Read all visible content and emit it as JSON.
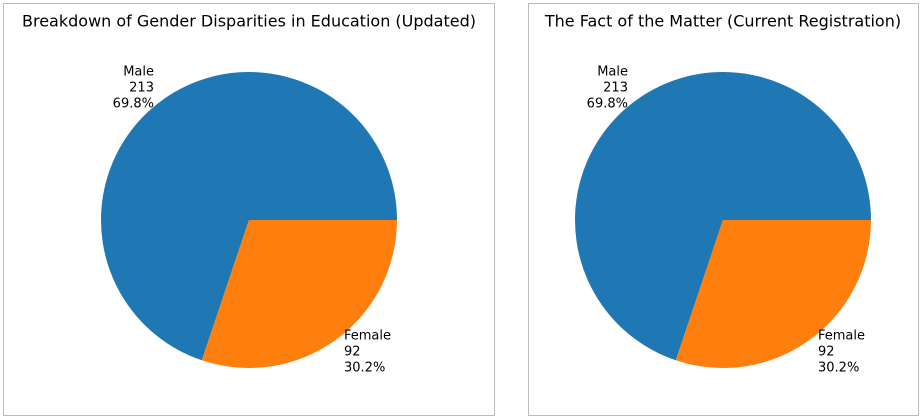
{
  "chart_data": [
    {
      "type": "pie",
      "title": "Breakdown of Gender Disparities in Education (Updated)",
      "categories": [
        "Male",
        "Female"
      ],
      "values": [
        213,
        92
      ],
      "percentages": [
        {
          "value": 69.8,
          "label": "69.8%"
        },
        {
          "value": 30.2,
          "label": "30.2%"
        }
      ],
      "colors": [
        "#1f77b4",
        "#ff7f0e"
      ]
    },
    {
      "type": "pie",
      "title": "The Fact of the Matter (Current Registration)",
      "categories": [
        "Male",
        "Female"
      ],
      "values": [
        213,
        92
      ],
      "percentages": [
        {
          "value": 69.8,
          "label": "69.8%"
        },
        {
          "value": 30.2,
          "label": "30.2%"
        }
      ],
      "colors": [
        "#1f77b4",
        "#ff7f0e"
      ]
    }
  ]
}
